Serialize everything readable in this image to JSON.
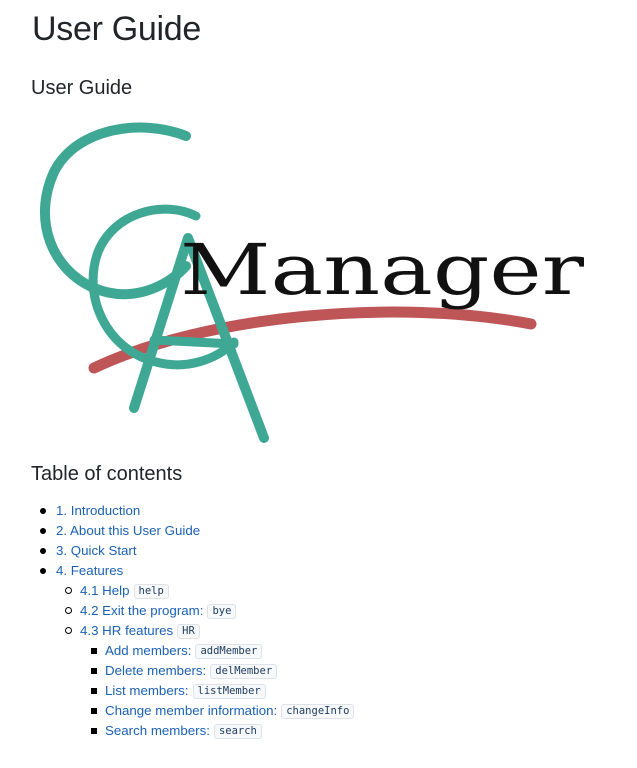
{
  "page": {
    "title": "User Guide",
    "subtitle": "User Guide"
  },
  "logo": {
    "letters": "CCA",
    "wordmark": "Manager",
    "colors": {
      "letters": "#3ea894",
      "swoosh": "#b84648",
      "wordmark": "#111111"
    }
  },
  "toc": {
    "title": "Table of contents",
    "items": [
      {
        "label": "1. Introduction",
        "level": 1
      },
      {
        "label": "2. About this User Guide",
        "level": 1
      },
      {
        "label": "3. Quick Start",
        "level": 1
      },
      {
        "label": "4. Features",
        "level": 1
      },
      {
        "label": "4.1 Help",
        "code": "help",
        "level": 2
      },
      {
        "label": "4.2 Exit the program:",
        "code": "bye",
        "level": 2
      },
      {
        "label": "4.3 HR features",
        "code": "HR",
        "level": 2
      },
      {
        "label": "Add members:",
        "code": "addMember",
        "level": 3
      },
      {
        "label": "Delete members:",
        "code": "delMember",
        "level": 3
      },
      {
        "label": "List members:",
        "code": "listMember",
        "level": 3
      },
      {
        "label": "Change member information:",
        "code": "changeInfo",
        "level": 3
      },
      {
        "label": "Search members:",
        "code": "search",
        "level": 3
      }
    ]
  },
  "colors": {
    "link": "#1b61b5",
    "text": "#212529"
  }
}
